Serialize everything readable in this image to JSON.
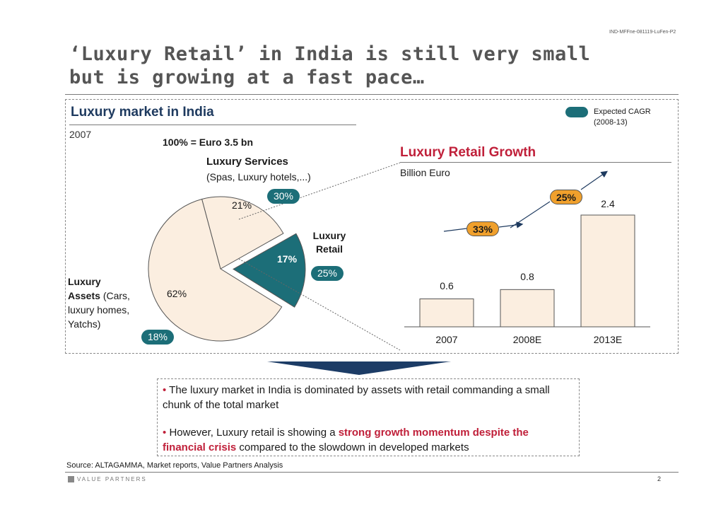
{
  "doc_code": "IND-MFFne-081119-LuFen-P2",
  "title_line1": "‘Luxury Retail’ in India is still very small",
  "title_line2": "but is growing at a fast pace…",
  "legend": {
    "line1": "Expected CAGR",
    "line2": "(2008-13)",
    "color": "#1c6e78"
  },
  "chart_data": [
    {
      "type": "pie",
      "title": "Luxury market in India",
      "year": "2007",
      "total_label": "100% = Euro 3.5 bn",
      "slices": [
        {
          "name": "Luxury Assets",
          "value": 62,
          "label": "62%",
          "cagr": "18%",
          "desc": "Luxury Assets (Cars, luxury homes, Yatchs)",
          "color": "#fbeee0"
        },
        {
          "name": "Luxury Services",
          "value": 21,
          "label": "21%",
          "cagr": "30%",
          "desc": "Luxury Services (Spas, Luxury hotels,...)",
          "color": "#fbeee0"
        },
        {
          "name": "Luxury Retail",
          "value": 17,
          "label": "17%",
          "cagr": "25%",
          "desc": "Luxury Retail",
          "color": "#1c6e78"
        }
      ],
      "labels": {
        "assets_bold": "Luxury",
        "assets_bold2": "Assets",
        "assets_rest": "(Cars,",
        "assets_l3": "luxury homes,",
        "assets_l4": "Yatchs)",
        "services_title": "Luxury Services",
        "services_sub": "(Spas, Luxury hotels,...)",
        "retail_l1": "Luxury",
        "retail_l2": "Retail"
      }
    },
    {
      "type": "bar",
      "title": "Luxury Retail Growth",
      "ylabel": "Billion Euro",
      "categories": [
        "2007",
        "2008E",
        "2013E"
      ],
      "values": [
        0.6,
        0.8,
        2.4
      ],
      "value_labels": [
        "0.6",
        "0.8",
        "2.4"
      ],
      "growth_annotations": [
        {
          "from": "2007",
          "to": "2008E",
          "label": "33%"
        },
        {
          "from": "2008E",
          "to": "2013E",
          "label": "25%"
        }
      ],
      "ylim": [
        0,
        2.4
      ],
      "bar_color": "#fbeee0"
    }
  ],
  "bullets": {
    "b1": "The luxury market in India is dominated by assets with retail commanding a small chunk of the total market",
    "b2_pre": "However, Luxury retail is showing a ",
    "b2_hl": "strong growth momentum despite the financial crisis",
    "b2_post": " compared to the slowdown in developed markets"
  },
  "source": "Source: ALTAGAMMA, Market reports, Value Partners Analysis",
  "logo_text": "VALUE PARTNERS",
  "page_number": "2"
}
